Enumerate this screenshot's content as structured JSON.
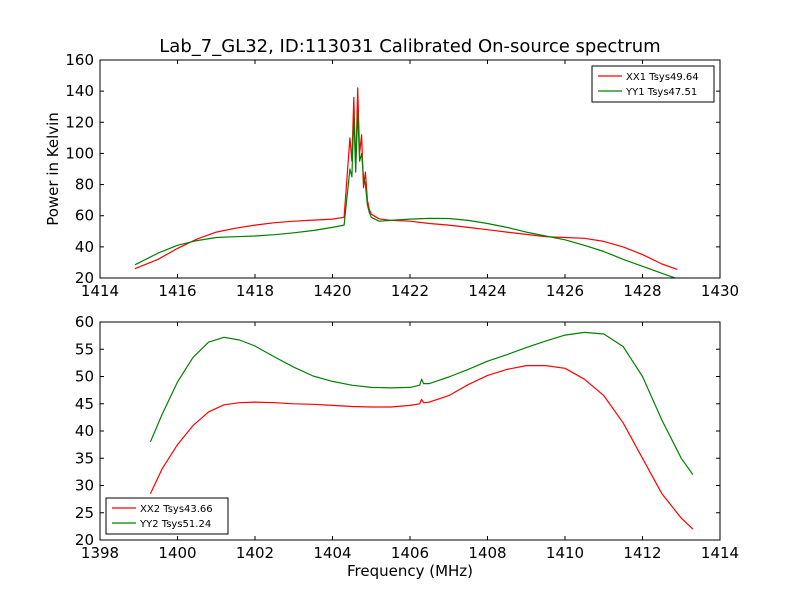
{
  "figure": {
    "title": "Lab_7_GL32, ID:113031 Calibrated On-source spectrum",
    "xlabel": "Frequency (MHz)",
    "ylabel": "Power in Kelvin",
    "colors": {
      "red": "#ff0000",
      "green": "#008000"
    }
  },
  "chart_data": [
    {
      "type": "line",
      "title": "Lab_7_GL32, ID:113031 Calibrated On-source spectrum",
      "xlabel": "",
      "ylabel": "Power in Kelvin",
      "xlim": [
        1414,
        1430
      ],
      "ylim": [
        20,
        160
      ],
      "xticks": [
        "1414",
        "1416",
        "1418",
        "1420",
        "1422",
        "1424",
        "1426",
        "1428",
        "1430"
      ],
      "yticks": [
        "20",
        "40",
        "60",
        "80",
        "100",
        "120",
        "140",
        "160"
      ],
      "grid": false,
      "legend_position": "top-right",
      "series": [
        {
          "name": "XX1 Tsys49.64",
          "color": "#ff0000",
          "x": [
            1414.9,
            1415.5,
            1416.0,
            1416.5,
            1417.0,
            1417.5,
            1418.0,
            1418.5,
            1419.0,
            1419.5,
            1420.0,
            1420.3,
            1420.45,
            1420.5,
            1420.55,
            1420.6,
            1420.65,
            1420.7,
            1420.75,
            1420.8,
            1420.85,
            1420.9,
            1420.95,
            1421.0,
            1421.2,
            1421.5,
            1422.0,
            1422.5,
            1423.0,
            1423.5,
            1424.0,
            1424.5,
            1425.0,
            1425.5,
            1426.0,
            1426.5,
            1427.0,
            1427.5,
            1428.0,
            1428.5,
            1428.9
          ],
          "y": [
            26,
            32,
            39,
            45,
            49.5,
            52,
            54,
            55.5,
            56.5,
            57.2,
            57.8,
            59,
            110,
            95,
            136,
            90,
            142,
            100,
            112,
            78,
            88,
            70,
            64,
            61,
            58,
            57,
            56.5,
            55,
            54,
            52.5,
            51,
            49.5,
            48,
            46.5,
            46,
            45.5,
            43.5,
            40,
            35,
            29,
            25.5
          ]
        },
        {
          "name": "YY1 Tsys47.51",
          "color": "#008000",
          "x": [
            1414.9,
            1415.5,
            1416.0,
            1416.5,
            1417.0,
            1417.5,
            1418.0,
            1418.5,
            1419.0,
            1419.5,
            1420.0,
            1420.3,
            1420.45,
            1420.5,
            1420.55,
            1420.6,
            1420.65,
            1420.7,
            1420.75,
            1420.8,
            1420.85,
            1420.9,
            1420.95,
            1421.0,
            1421.2,
            1421.5,
            1422.0,
            1422.5,
            1423.0,
            1423.5,
            1424.0,
            1424.5,
            1425.0,
            1425.5,
            1426.0,
            1426.5,
            1427.0,
            1427.5,
            1428.0,
            1428.5,
            1428.9
          ],
          "y": [
            28.5,
            36,
            41,
            44,
            46,
            46.5,
            47,
            47.8,
            49,
            50.5,
            52.5,
            54,
            90,
            85,
            125,
            88,
            128,
            95,
            100,
            85,
            80,
            67,
            62,
            59,
            56.5,
            57,
            57.8,
            58.3,
            58.2,
            57,
            55,
            52.5,
            49.5,
            47,
            44.5,
            41,
            37,
            32,
            27.5,
            23,
            19.5
          ]
        }
      ]
    },
    {
      "type": "line",
      "title": "",
      "xlabel": "Frequency (MHz)",
      "ylabel": "",
      "xlim": [
        1398,
        1414
      ],
      "ylim": [
        20,
        60
      ],
      "xticks": [
        "1398",
        "1400",
        "1402",
        "1404",
        "1406",
        "1408",
        "1410",
        "1412",
        "1414"
      ],
      "yticks": [
        "20",
        "25",
        "30",
        "35",
        "40",
        "45",
        "50",
        "55",
        "60"
      ],
      "grid": false,
      "legend_position": "bottom-left",
      "series": [
        {
          "name": "XX2 Tsys43.66",
          "color": "#ff0000",
          "x": [
            1399.3,
            1399.6,
            1400.0,
            1400.4,
            1400.8,
            1401.2,
            1401.6,
            1402.0,
            1402.5,
            1403.0,
            1403.5,
            1404.0,
            1404.5,
            1405.0,
            1405.5,
            1406.0,
            1406.25,
            1406.3,
            1406.35,
            1406.5,
            1407.0,
            1407.5,
            1408.0,
            1408.5,
            1409.0,
            1409.5,
            1410.0,
            1410.5,
            1411.0,
            1411.5,
            1412.0,
            1412.5,
            1413.0,
            1413.3
          ],
          "y": [
            28.5,
            33,
            37.5,
            41,
            43.5,
            44.8,
            45.2,
            45.3,
            45.2,
            45,
            44.9,
            44.7,
            44.5,
            44.4,
            44.4,
            44.7,
            45,
            45.8,
            45.2,
            45.3,
            46.5,
            48.5,
            50.2,
            51.3,
            52,
            52,
            51.5,
            49.5,
            46.5,
            41.5,
            35,
            28.5,
            24,
            22
          ]
        },
        {
          "name": "YY2 Tsys51.24",
          "color": "#008000",
          "x": [
            1399.3,
            1399.6,
            1400.0,
            1400.4,
            1400.8,
            1401.2,
            1401.6,
            1402.0,
            1402.5,
            1403.0,
            1403.5,
            1404.0,
            1404.5,
            1405.0,
            1405.5,
            1406.0,
            1406.25,
            1406.3,
            1406.35,
            1406.5,
            1407.0,
            1407.5,
            1408.0,
            1408.5,
            1409.0,
            1409.5,
            1410.0,
            1410.5,
            1411.0,
            1411.5,
            1412.0,
            1412.5,
            1413.0,
            1413.3
          ],
          "y": [
            38,
            43,
            49,
            53.5,
            56.3,
            57.2,
            56.7,
            55.6,
            53.6,
            51.7,
            50.1,
            49.1,
            48.4,
            48,
            47.9,
            48,
            48.4,
            49.5,
            48.7,
            48.7,
            49.9,
            51.3,
            52.8,
            54,
            55.3,
            56.5,
            57.6,
            58.1,
            57.8,
            55.5,
            50,
            42,
            35,
            32
          ]
        }
      ]
    }
  ]
}
